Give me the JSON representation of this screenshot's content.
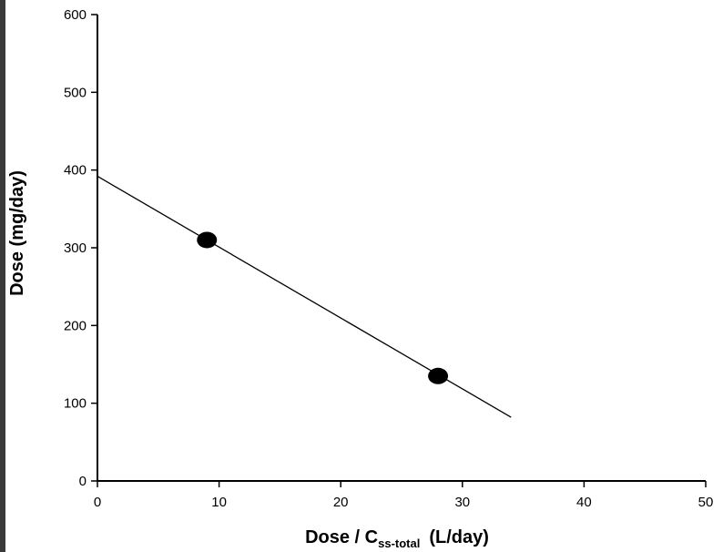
{
  "chart_data": {
    "type": "scatter",
    "xlabel_main": "Dose / C",
    "xlabel_sub": "ss-total",
    "xlabel_unit": "(L/day)",
    "ylabel": "Dose (mg/day)",
    "xlim": [
      0,
      50
    ],
    "ylim": [
      0,
      600
    ],
    "xticks": [
      0,
      10,
      20,
      30,
      40,
      50
    ],
    "yticks": [
      0,
      100,
      200,
      300,
      400,
      500,
      600
    ],
    "grid": false,
    "points": [
      {
        "x": 9,
        "y": 310
      },
      {
        "x": 28,
        "y": 135
      }
    ],
    "regression_line": {
      "x": [
        0,
        34
      ],
      "y": [
        392,
        82
      ]
    }
  }
}
